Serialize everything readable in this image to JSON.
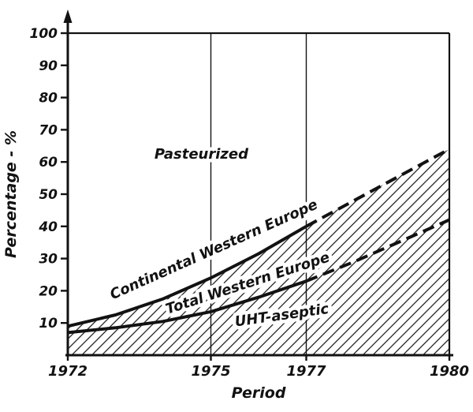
{
  "colors": {
    "ink": "#121212",
    "background": "#ffffff"
  },
  "chart_data": {
    "type": "line",
    "title": "",
    "xlabel": "Period",
    "ylabel": "Percentage - %",
    "xlim": [
      1972,
      1980
    ],
    "ylim": [
      0,
      100
    ],
    "x_ticks": [
      1972,
      1975,
      1977,
      1980
    ],
    "y_ticks": [
      10,
      20,
      30,
      40,
      50,
      60,
      70,
      80,
      90,
      100
    ],
    "vertical_gridlines": [
      1975,
      1977
    ],
    "grid": "vertical-only",
    "legend_position": "labels-on-chart",
    "series": [
      {
        "name": "Continental Western Europe",
        "x": [
          1972,
          1973,
          1974,
          1975,
          1976,
          1977,
          1978,
          1979,
          1980
        ],
        "values": [
          9,
          12.5,
          17.5,
          24,
          31.5,
          40,
          48,
          56,
          64
        ],
        "style": "solid-then-dashed",
        "solid_until_x": 1977
      },
      {
        "name": "Total Western Europe",
        "x": [
          1972,
          1973,
          1974,
          1975,
          1976,
          1977,
          1978,
          1979,
          1980
        ],
        "values": [
          7,
          8.5,
          10.5,
          13.5,
          18,
          23,
          29,
          35.5,
          42
        ],
        "style": "solid-then-dashed",
        "solid_until_x": 1977
      }
    ],
    "regions": [
      {
        "label": "Pasteurized",
        "area": "above Continental Western Europe line",
        "fill": "plain"
      },
      {
        "label": "UHT-aseptic",
        "area": "below Continental Western Europe line",
        "fill": "diagonal-hatch"
      }
    ],
    "annotations": [
      {
        "text": "Pasteurized",
        "x": 1974.8,
        "y": 61,
        "angle": 0
      },
      {
        "text": "Continental Western Europe",
        "x": 1975.1,
        "y": 31.5,
        "angle": -24
      },
      {
        "text": "Total Western Europe",
        "x": 1975.8,
        "y": 21,
        "angle": -18
      },
      {
        "text": "UHT-aseptic",
        "x": 1976.5,
        "y": 11,
        "angle": -8
      }
    ]
  }
}
